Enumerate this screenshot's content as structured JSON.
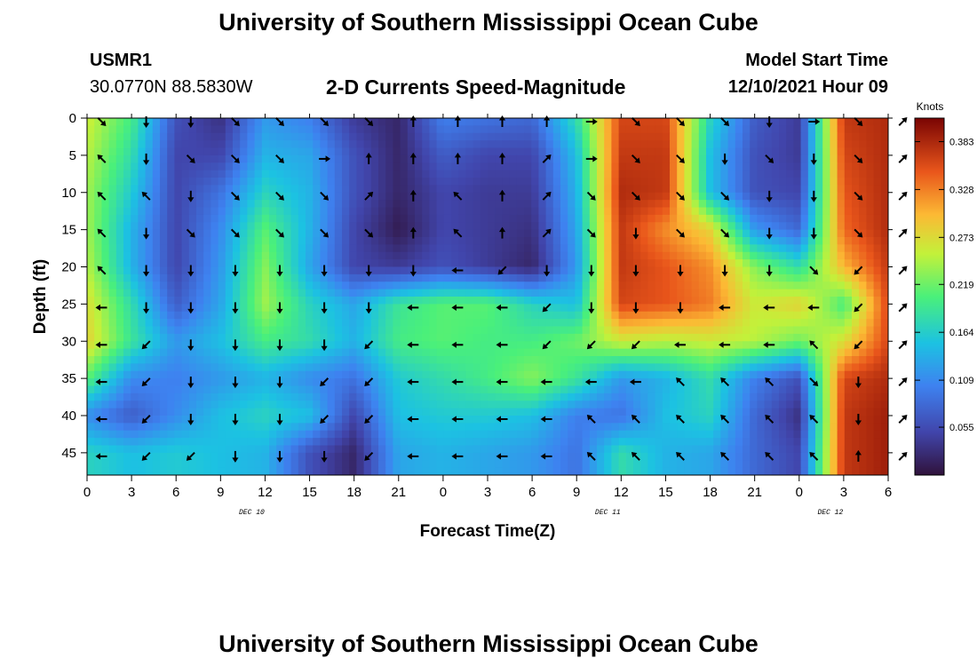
{
  "header": {
    "title": "University of Southern Mississippi Ocean Cube",
    "station_id": "USMR1",
    "station_coords": "30.0770N  88.5830W",
    "product_title": "2-D Currents Speed-Magnitude",
    "model_start_label": "Model Start Time",
    "model_start_value": "12/10/2021 Hour 09"
  },
  "footer": {
    "repeat_title": "University of Southern Mississippi Ocean Cube"
  },
  "chart_data": {
    "type": "heatmap",
    "title": "2-D Currents Speed-Magnitude",
    "xlabel": "Forecast Time(Z)",
    "ylabel": "Depth (ft)",
    "x_ticks": [
      "0",
      "3",
      "6",
      "9",
      "12",
      "15",
      "18",
      "21",
      "0",
      "3",
      "6",
      "9",
      "12",
      "15",
      "18",
      "21",
      "0",
      "3",
      "6"
    ],
    "day_labels": [
      {
        "label": "DEC 10",
        "tick_index": 3.7
      },
      {
        "label": "DEC 11",
        "tick_index": 11.7
      },
      {
        "label": "DEC 12",
        "tick_index": 16.7
      }
    ],
    "y_ticks": [
      0,
      5,
      10,
      15,
      20,
      25,
      30,
      35,
      40,
      45
    ],
    "ylim": [
      0,
      48
    ],
    "colorbar": {
      "unit": "Knots",
      "ticks": [
        "0.383",
        "0.328",
        "0.273",
        "0.219",
        "0.164",
        "0.109",
        "0.055"
      ],
      "range": [
        0.0,
        0.41
      ]
    },
    "speed_grid_note": "rows = depth 0..45 ft step 5, columns = forecast time steps 0..18 (3 h apart), values in knots",
    "speed_grid": [
      [
        0.26,
        0.2,
        0.06,
        0.03,
        0.12,
        0.1,
        0.04,
        0.02,
        0.1,
        0.09,
        0.08,
        0.18,
        0.36,
        0.36,
        0.17,
        0.07,
        0.04,
        0.37,
        0.38
      ],
      [
        0.25,
        0.18,
        0.05,
        0.05,
        0.14,
        0.13,
        0.06,
        0.02,
        0.07,
        0.05,
        0.05,
        0.15,
        0.37,
        0.37,
        0.15,
        0.06,
        0.04,
        0.36,
        0.38
      ],
      [
        0.24,
        0.16,
        0.05,
        0.09,
        0.17,
        0.14,
        0.06,
        0.02,
        0.05,
        0.04,
        0.04,
        0.14,
        0.38,
        0.37,
        0.15,
        0.06,
        0.05,
        0.35,
        0.38
      ],
      [
        0.24,
        0.14,
        0.05,
        0.11,
        0.21,
        0.14,
        0.05,
        0.01,
        0.05,
        0.04,
        0.03,
        0.13,
        0.37,
        0.32,
        0.28,
        0.12,
        0.08,
        0.34,
        0.38
      ],
      [
        0.25,
        0.14,
        0.05,
        0.12,
        0.23,
        0.13,
        0.05,
        0.04,
        0.06,
        0.04,
        0.02,
        0.12,
        0.37,
        0.35,
        0.32,
        0.23,
        0.18,
        0.3,
        0.37
      ],
      [
        0.27,
        0.18,
        0.07,
        0.13,
        0.24,
        0.17,
        0.13,
        0.19,
        0.21,
        0.21,
        0.17,
        0.15,
        0.36,
        0.35,
        0.33,
        0.26,
        0.28,
        0.2,
        0.36
      ],
      [
        0.28,
        0.19,
        0.12,
        0.15,
        0.2,
        0.18,
        0.14,
        0.2,
        0.21,
        0.2,
        0.2,
        0.22,
        0.26,
        0.25,
        0.26,
        0.25,
        0.22,
        0.27,
        0.36
      ],
      [
        0.21,
        0.11,
        0.1,
        0.12,
        0.14,
        0.11,
        0.09,
        0.16,
        0.18,
        0.2,
        0.23,
        0.19,
        0.12,
        0.14,
        0.18,
        0.1,
        0.06,
        0.36,
        0.38
      ],
      [
        0.11,
        0.07,
        0.11,
        0.15,
        0.17,
        0.15,
        0.05,
        0.15,
        0.16,
        0.16,
        0.15,
        0.1,
        0.09,
        0.15,
        0.17,
        0.08,
        0.03,
        0.37,
        0.39
      ],
      [
        0.17,
        0.15,
        0.16,
        0.15,
        0.14,
        0.06,
        0.02,
        0.13,
        0.14,
        0.13,
        0.12,
        0.09,
        0.18,
        0.14,
        0.13,
        0.08,
        0.05,
        0.37,
        0.39
      ]
    ],
    "direction_grid_note": "arrow heading in degrees clockwise from north (0 = up)",
    "direction_grid": [
      [
        135,
        180,
        180,
        135,
        135,
        135,
        135,
        0,
        0,
        0,
        0,
        90,
        135,
        135,
        135,
        180,
        90,
        135,
        45
      ],
      [
        315,
        180,
        135,
        135,
        135,
        90,
        0,
        0,
        0,
        0,
        45,
        90,
        135,
        135,
        180,
        135,
        180,
        135,
        45
      ],
      [
        315,
        315,
        180,
        135,
        135,
        135,
        45,
        0,
        315,
        0,
        45,
        135,
        135,
        135,
        135,
        180,
        180,
        135,
        45
      ],
      [
        315,
        180,
        135,
        135,
        135,
        135,
        135,
        0,
        315,
        0,
        45,
        135,
        180,
        135,
        135,
        180,
        180,
        135,
        45
      ],
      [
        315,
        180,
        180,
        180,
        180,
        180,
        180,
        180,
        270,
        225,
        180,
        180,
        180,
        180,
        180,
        180,
        135,
        225,
        45
      ],
      [
        270,
        180,
        180,
        180,
        180,
        180,
        180,
        270,
        270,
        270,
        225,
        180,
        180,
        180,
        270,
        270,
        270,
        225,
        45
      ],
      [
        270,
        225,
        180,
        180,
        180,
        180,
        225,
        270,
        270,
        270,
        225,
        225,
        225,
        270,
        270,
        270,
        315,
        225,
        45
      ],
      [
        270,
        225,
        180,
        180,
        180,
        225,
        225,
        270,
        270,
        270,
        270,
        270,
        270,
        315,
        315,
        315,
        135,
        180,
        45
      ],
      [
        270,
        225,
        180,
        180,
        180,
        225,
        225,
        270,
        270,
        270,
        270,
        315,
        315,
        315,
        315,
        315,
        315,
        180,
        45
      ],
      [
        270,
        225,
        225,
        180,
        180,
        180,
        225,
        270,
        270,
        270,
        270,
        315,
        315,
        315,
        315,
        315,
        315,
        0,
        45
      ]
    ]
  }
}
